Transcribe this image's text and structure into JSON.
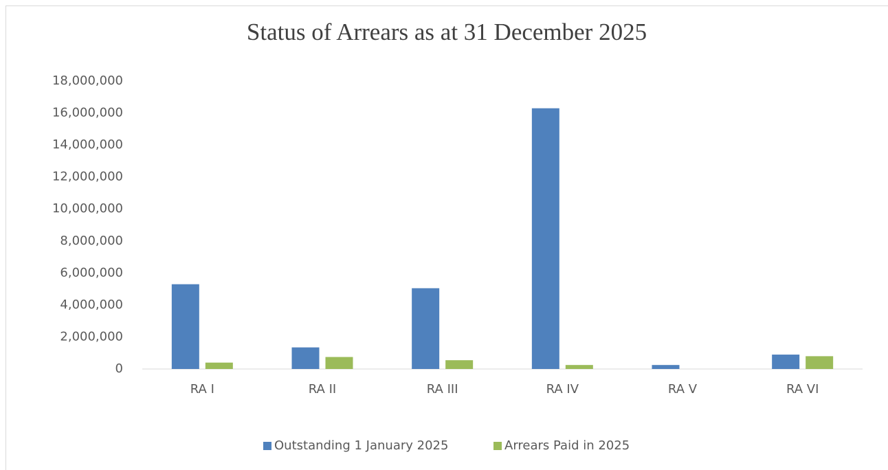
{
  "chart_data": {
    "type": "bar",
    "title": "Status of Arrears as at 31 December 2025",
    "categories": [
      "RA I",
      "RA II",
      "RA III",
      "RA IV",
      "RA V",
      "RA VI"
    ],
    "series": [
      {
        "name": "Outstanding 1 January 2025",
        "color": "#4f81bd",
        "values": [
          5300000,
          1350000,
          5050000,
          16300000,
          250000,
          900000
        ]
      },
      {
        "name": "Arrears Paid in 2025",
        "color": "#9bbb59",
        "values": [
          400000,
          750000,
          550000,
          250000,
          0,
          800000
        ]
      }
    ],
    "ylim": [
      0,
      18000000
    ],
    "yticks": [
      0,
      {
        "value": 2000000,
        "label": "2,000,000"
      },
      {
        "value": 4000000,
        "label": "4,000,000"
      },
      {
        "value": 6000000,
        "label": "6,000,000"
      },
      {
        "value": 8000000,
        "label": "8,000,000"
      },
      {
        "value": 10000000,
        "label": "10,000,000"
      },
      {
        "value": 12000000,
        "label": "12,000,000"
      },
      {
        "value": 14000000,
        "label": "14,000,000"
      },
      {
        "value": 16000000,
        "label": "16,000,000"
      },
      {
        "value": 18000000,
        "label": "18,000,000"
      }
    ],
    "grid": false,
    "legend": "bottom"
  }
}
